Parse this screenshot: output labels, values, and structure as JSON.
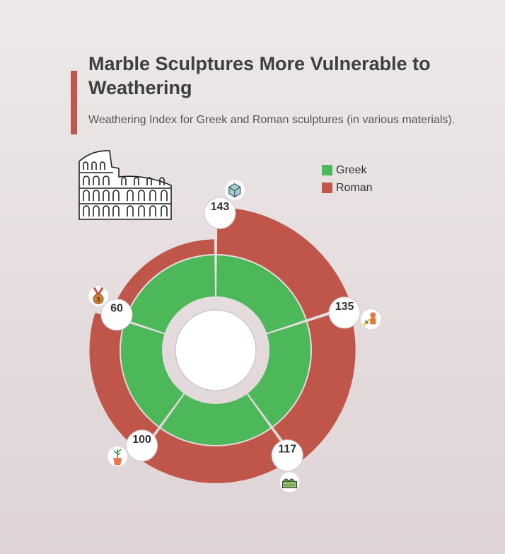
{
  "header": {
    "title": "Marble Sculptures More Vulnerable to Weathering",
    "subtitle": "Weathering Index for Greek and Roman sculptures (in various materials)."
  },
  "decorations": {
    "illustration": "colosseum-illustration"
  },
  "colors": {
    "greek": "#4cb85a",
    "roman": "#c0564a",
    "accent": "#c0564a"
  },
  "chart_data": {
    "type": "radial-bar",
    "series": [
      {
        "name": "Greek",
        "color": "#4cb85a"
      },
      {
        "name": "Roman",
        "color": "#c0564a"
      }
    ],
    "segments": [
      {
        "label": "143",
        "total": 143,
        "icon": "cube-icon"
      },
      {
        "label": "135",
        "total": 135,
        "icon": "sculpture-icon"
      },
      {
        "label": "117",
        "total": 117,
        "icon": "plinth-icon"
      },
      {
        "label": "100",
        "total": 100,
        "icon": "potted-plant-icon"
      },
      {
        "label": "60",
        "total": 60,
        "icon": "bronze-medal-icon"
      }
    ],
    "legend_position": "top-right"
  }
}
